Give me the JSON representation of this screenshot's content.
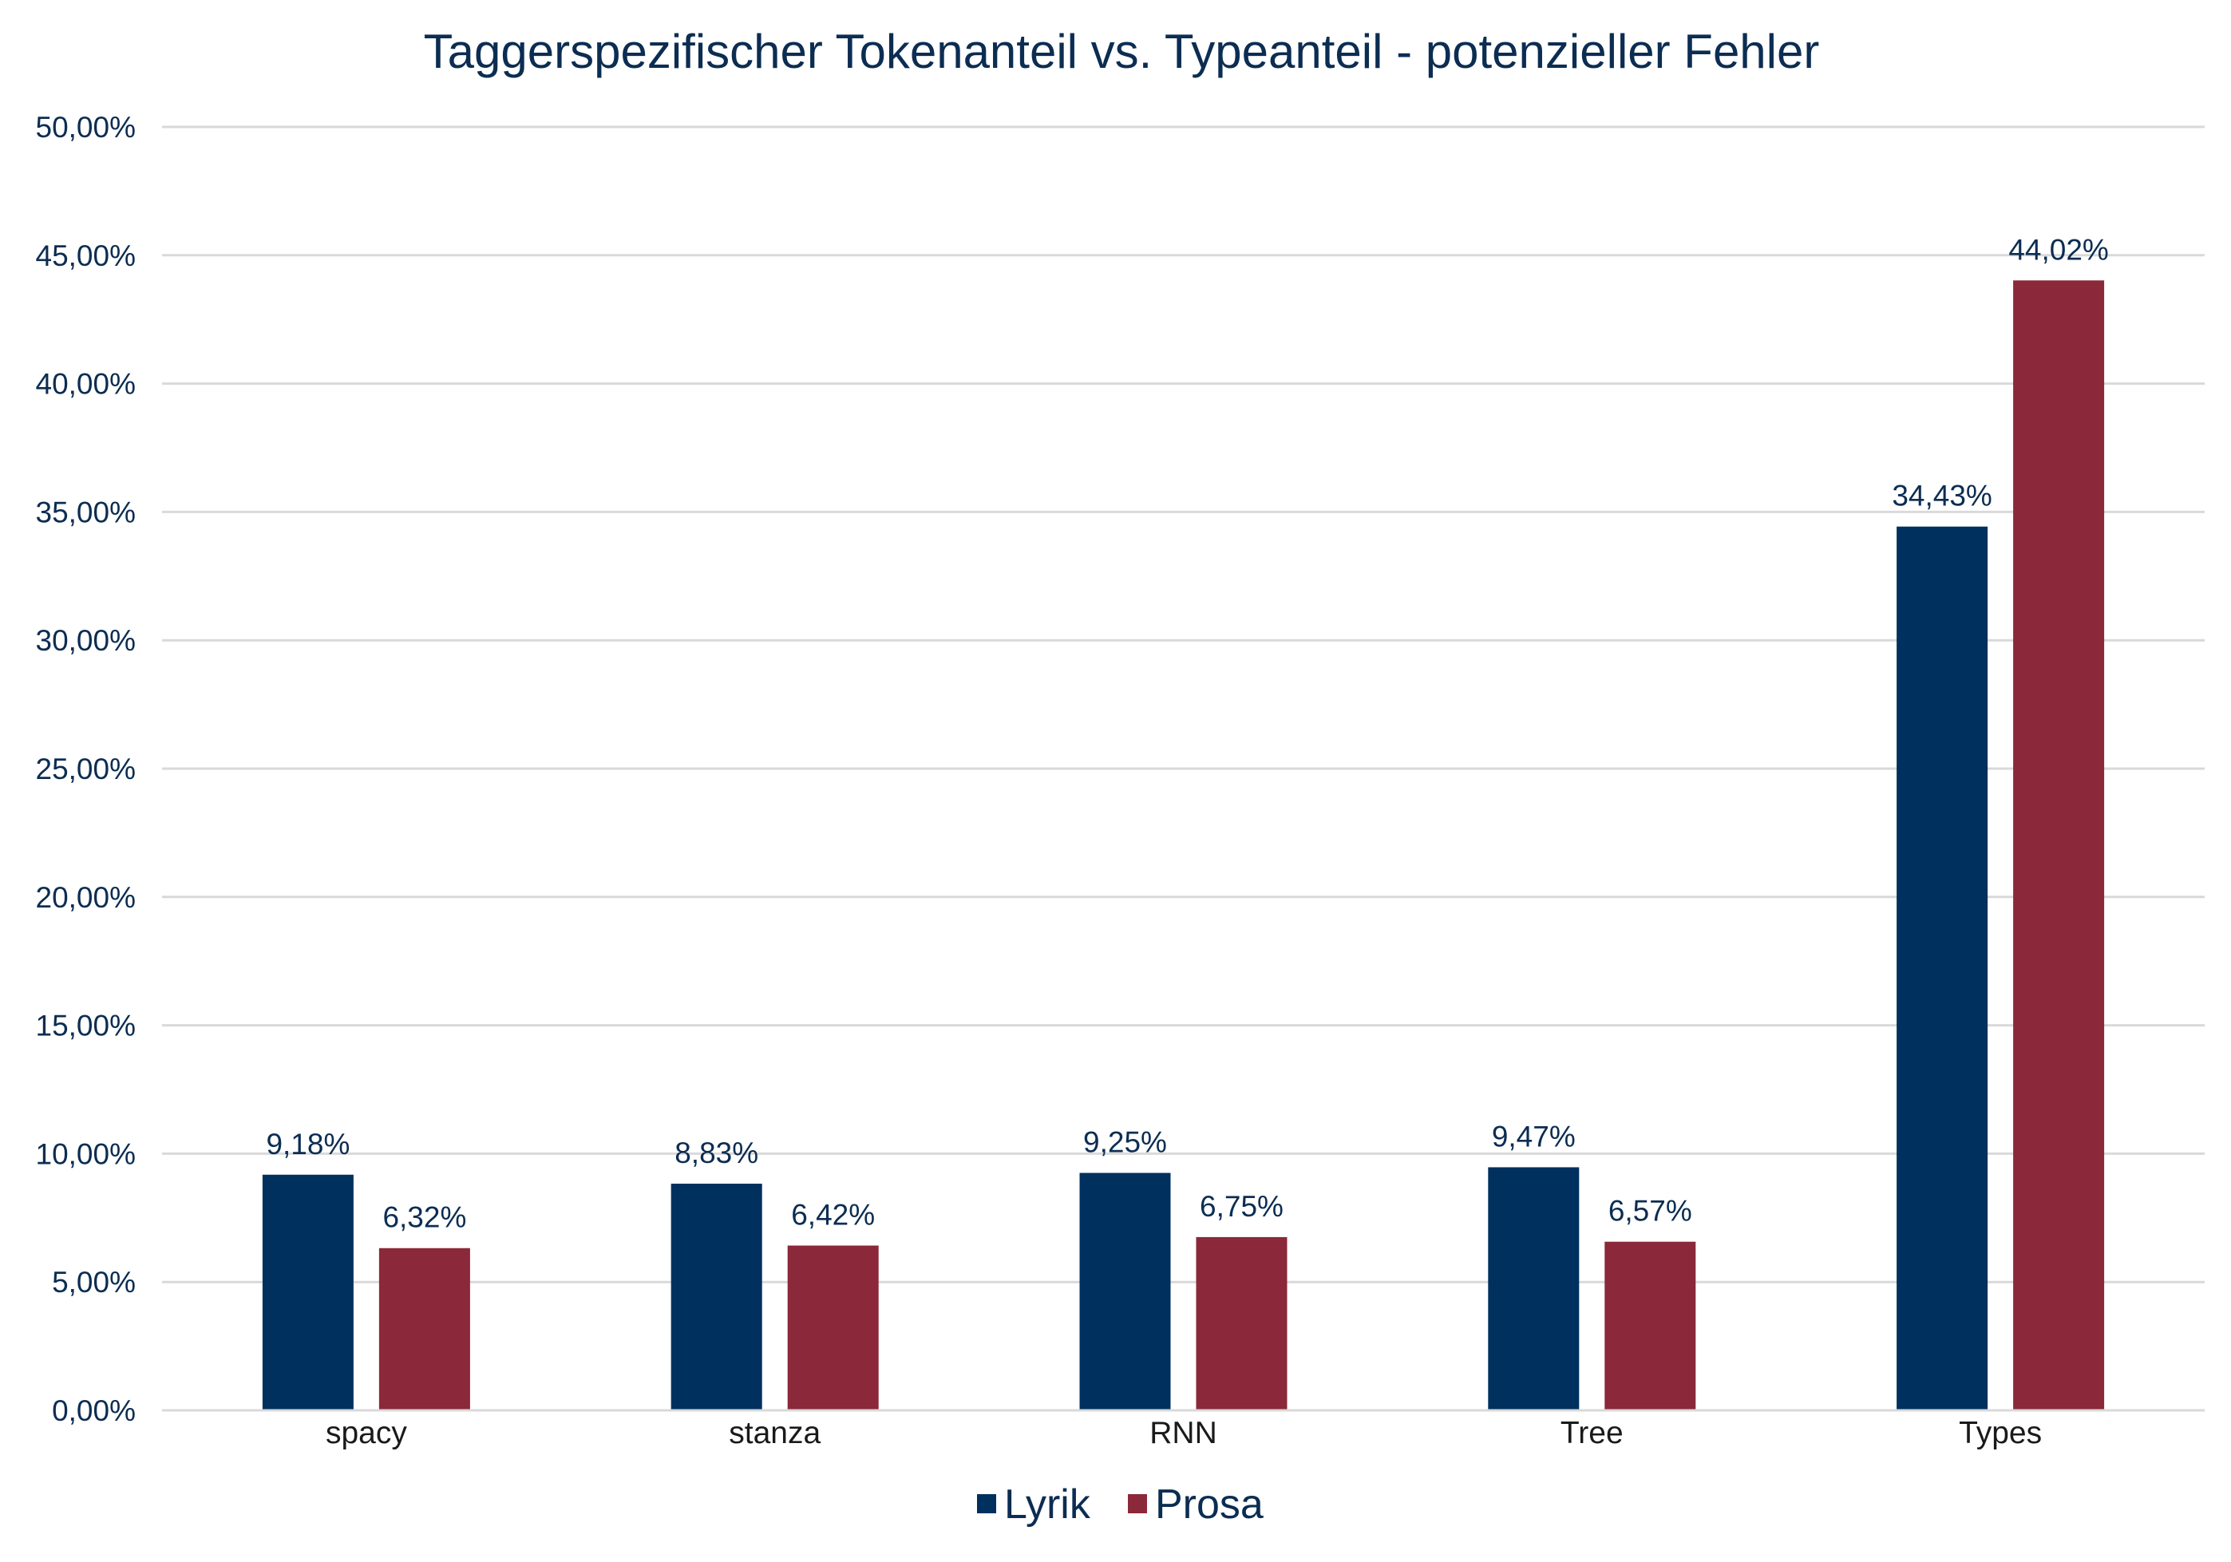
{
  "chart_data": {
    "type": "bar",
    "title": "Taggerspezifischer Tokenanteil vs. Typeanteil - potenzieller Fehler",
    "xlabel": "",
    "ylabel": "",
    "categories": [
      "spacy",
      "stanza",
      "RNN",
      "Tree",
      "Types"
    ],
    "series": [
      {
        "name": "Lyrik",
        "color": "#00305e",
        "values": [
          9.18,
          8.83,
          9.25,
          9.47,
          34.43
        ],
        "labels": [
          "9,18%",
          "8,83%",
          "9,25%",
          "9,47%",
          "34,43%"
        ]
      },
      {
        "name": "Prosa",
        "color": "#8b2839",
        "values": [
          6.32,
          6.42,
          6.75,
          6.57,
          44.02
        ],
        "labels": [
          "6,32%",
          "6,42%",
          "6,75%",
          "6,57%",
          "44,02%"
        ]
      }
    ],
    "ylim": [
      0,
      50
    ],
    "yticks": [
      0,
      5,
      10,
      15,
      20,
      25,
      30,
      35,
      40,
      45,
      50
    ],
    "ytick_labels": [
      "0,00%",
      "5,00%",
      "10,00%",
      "15,00%",
      "20,00%",
      "25,00%",
      "30,00%",
      "35,00%",
      "40,00%",
      "45,00%",
      "50,00%"
    ],
    "grid": true,
    "legend_position": "bottom"
  }
}
